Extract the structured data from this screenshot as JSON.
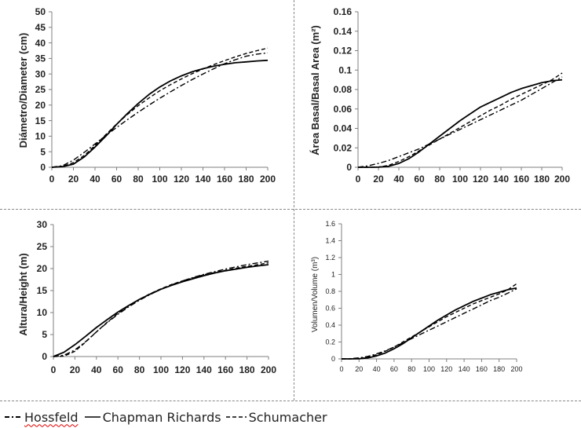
{
  "chart_data": [
    {
      "type": "line",
      "ylabel": "Diámetro/Diameter (cm)",
      "xlim": [
        0,
        200
      ],
      "ylim": [
        0,
        50
      ],
      "xticks": [
        0,
        20,
        40,
        60,
        80,
        100,
        120,
        140,
        160,
        180,
        200
      ],
      "yticks": [
        0,
        5,
        10,
        15,
        20,
        25,
        30,
        35,
        40,
        45,
        50
      ],
      "grid": false,
      "x": [
        0,
        10,
        20,
        30,
        40,
        50,
        60,
        70,
        80,
        90,
        100,
        110,
        120,
        130,
        140,
        150,
        160,
        170,
        180,
        190,
        200
      ],
      "series": [
        {
          "name": "Hossfeld",
          "style": "dash-dot",
          "values": [
            0,
            0.5,
            2.3,
            4.8,
            7.5,
            10.2,
            12.8,
            15.3,
            17.7,
            20.0,
            22.2,
            24.3,
            26.3,
            28.2,
            30.0,
            31.7,
            33.3,
            34.6,
            35.7,
            36.4,
            36.8
          ]
        },
        {
          "name": "Chapman Richards",
          "style": "solid",
          "values": [
            0,
            0.2,
            1.0,
            3.3,
            6.5,
            10.0,
            13.8,
            17.3,
            20.5,
            23.4,
            25.8,
            27.8,
            29.4,
            30.7,
            31.7,
            32.5,
            33.1,
            33.6,
            33.9,
            34.2,
            34.4
          ]
        },
        {
          "name": "Schumacher",
          "style": "dash",
          "values": [
            0,
            0.3,
            1.5,
            3.8,
            7.0,
            10.5,
            13.9,
            17.0,
            19.8,
            22.3,
            24.6,
            26.6,
            28.4,
            30.1,
            31.6,
            33.0,
            34.3,
            35.5,
            36.6,
            37.5,
            38.3
          ]
        }
      ]
    },
    {
      "type": "line",
      "ylabel": "Área Basal/Basal Area (m²)",
      "xlim": [
        0,
        200
      ],
      "ylim": [
        0,
        0.16
      ],
      "xticks": [
        0,
        20,
        40,
        60,
        80,
        100,
        120,
        140,
        160,
        180,
        200
      ],
      "yticks": [
        0,
        0.02,
        0.04,
        0.06,
        0.08,
        0.1,
        0.12,
        0.14,
        0.16
      ],
      "grid": false,
      "x": [
        0,
        10,
        20,
        30,
        40,
        50,
        60,
        70,
        80,
        90,
        100,
        110,
        120,
        130,
        140,
        150,
        160,
        170,
        180,
        190,
        200
      ],
      "series": [
        {
          "name": "Hossfeld",
          "style": "dash-dot",
          "values": [
            0,
            0.0015,
            0.004,
            0.007,
            0.011,
            0.015,
            0.019,
            0.024,
            0.029,
            0.034,
            0.039,
            0.044,
            0.049,
            0.054,
            0.059,
            0.064,
            0.069,
            0.075,
            0.081,
            0.087,
            0.093
          ]
        },
        {
          "name": "Chapman Richards",
          "style": "solid",
          "values": [
            0,
            0,
            0.0002,
            0.001,
            0.004,
            0.009,
            0.016,
            0.024,
            0.032,
            0.04,
            0.048,
            0.055,
            0.062,
            0.067,
            0.072,
            0.077,
            0.081,
            0.084,
            0.087,
            0.089,
            0.09
          ]
        },
        {
          "name": "Schumacher",
          "style": "dash",
          "values": [
            0,
            0,
            0.0002,
            0.002,
            0.006,
            0.011,
            0.017,
            0.023,
            0.029,
            0.035,
            0.041,
            0.047,
            0.053,
            0.059,
            0.064,
            0.07,
            0.075,
            0.08,
            0.085,
            0.09,
            0.097
          ]
        }
      ]
    },
    {
      "type": "line",
      "ylabel": "Altura/Height (m)",
      "xlim": [
        0,
        200
      ],
      "ylim": [
        0,
        30
      ],
      "xticks": [
        0,
        20,
        40,
        60,
        80,
        100,
        120,
        140,
        160,
        180,
        200
      ],
      "yticks": [
        0,
        5,
        10,
        15,
        20,
        25,
        30
      ],
      "grid": false,
      "x": [
        0,
        10,
        20,
        30,
        40,
        50,
        60,
        70,
        80,
        90,
        100,
        110,
        120,
        130,
        140,
        150,
        160,
        170,
        180,
        190,
        200
      ],
      "series": [
        {
          "name": "Hossfeld",
          "style": "dash-dot",
          "values": [
            0,
            0.3,
            1.5,
            3.4,
            5.6,
            7.7,
            9.6,
            11.3,
            12.8,
            14.1,
            15.3,
            16.3,
            17.2,
            18.0,
            18.7,
            19.3,
            19.9,
            20.4,
            20.9,
            21.3,
            21.7
          ]
        },
        {
          "name": "Chapman Richards",
          "style": "solid",
          "values": [
            0,
            1.0,
            2.7,
            4.6,
            6.6,
            8.4,
            10.1,
            11.6,
            13.0,
            14.2,
            15.3,
            16.2,
            17.0,
            17.7,
            18.4,
            19.0,
            19.5,
            19.9,
            20.3,
            20.6,
            20.9
          ]
        },
        {
          "name": "Schumacher",
          "style": "dash",
          "values": [
            0,
            0.1,
            1.2,
            3.3,
            5.6,
            7.8,
            9.8,
            11.5,
            13.0,
            14.3,
            15.4,
            16.4,
            17.2,
            17.9,
            18.6,
            19.1,
            19.6,
            20.1,
            20.5,
            20.9,
            21.3
          ]
        }
      ]
    },
    {
      "type": "line",
      "ylabel": "Volumen/Volume (m³)",
      "xlim": [
        0,
        200
      ],
      "ylim": [
        0,
        1.6
      ],
      "xticks": [
        0,
        20,
        40,
        60,
        80,
        100,
        120,
        140,
        160,
        180,
        200
      ],
      "yticks": [
        0,
        0.2,
        0.4,
        0.6,
        0.8,
        1,
        1.2,
        1.4,
        1.6
      ],
      "grid": false,
      "x": [
        0,
        10,
        20,
        30,
        40,
        50,
        60,
        70,
        80,
        90,
        100,
        110,
        120,
        130,
        140,
        150,
        160,
        170,
        180,
        190,
        200
      ],
      "series": [
        {
          "name": "Hossfeld",
          "style": "dash-dot",
          "values": [
            0,
            0.003,
            0.012,
            0.03,
            0.06,
            0.095,
            0.14,
            0.19,
            0.24,
            0.29,
            0.34,
            0.39,
            0.44,
            0.49,
            0.54,
            0.59,
            0.64,
            0.69,
            0.73,
            0.78,
            0.83
          ]
        },
        {
          "name": "Chapman Richards",
          "style": "solid",
          "values": [
            0,
            0,
            0.002,
            0.012,
            0.035,
            0.07,
            0.12,
            0.18,
            0.25,
            0.32,
            0.39,
            0.46,
            0.52,
            0.58,
            0.63,
            0.68,
            0.72,
            0.76,
            0.79,
            0.82,
            0.84
          ]
        },
        {
          "name": "Schumacher",
          "style": "dash",
          "values": [
            0,
            0,
            0.004,
            0.02,
            0.05,
            0.09,
            0.14,
            0.2,
            0.26,
            0.32,
            0.38,
            0.44,
            0.5,
            0.55,
            0.6,
            0.65,
            0.69,
            0.73,
            0.77,
            0.82,
            0.89
          ]
        }
      ]
    }
  ],
  "legend": {
    "items": [
      {
        "label": "Hossfeld",
        "style": "dash-dot"
      },
      {
        "label": "Chapman Richards",
        "style": "solid"
      },
      {
        "label": "Schumacher",
        "style": "dash"
      }
    ]
  },
  "colors": {
    "lines": "#000000",
    "axes": "#7f7f7f",
    "text": "#222222"
  }
}
